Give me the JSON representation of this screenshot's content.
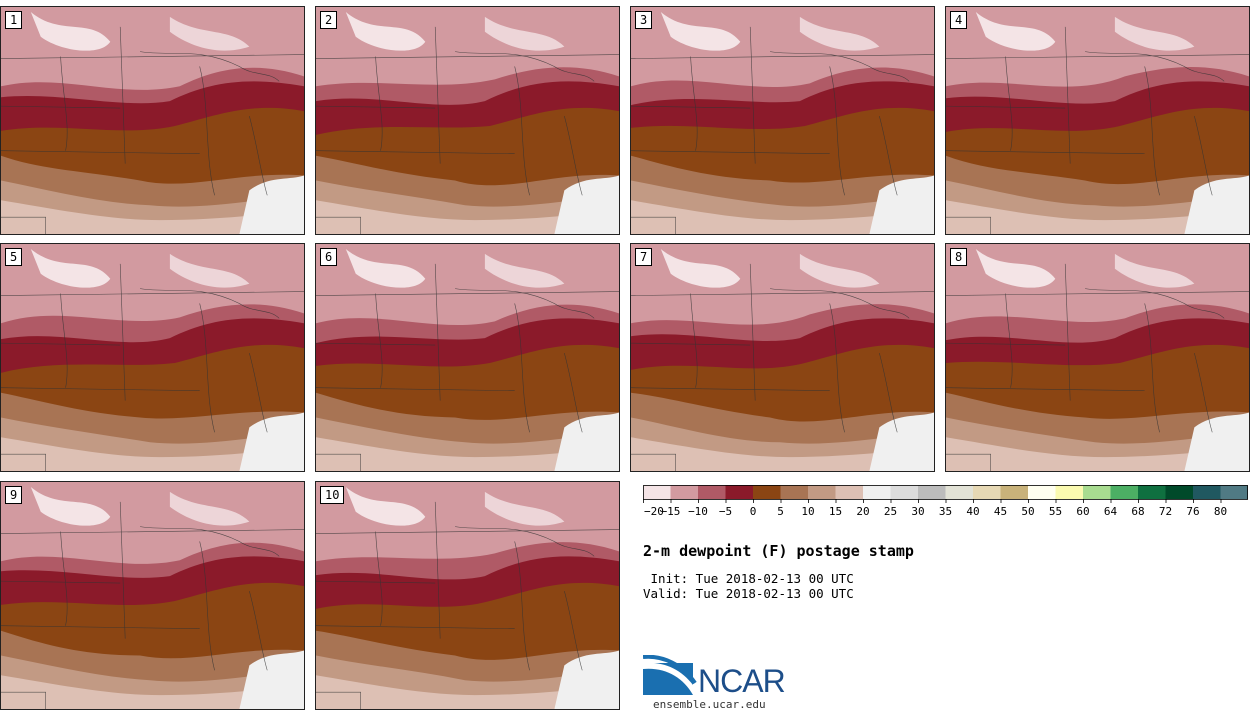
{
  "title": "2-m dewpoint (F) postage stamp",
  "init_label": " Init: Tue 2018-02-13 00 UTC",
  "valid_label": "Valid: Tue 2018-02-13 00 UTC",
  "logo_text": "NCAR",
  "url": "ensemble.ucar.edu",
  "members": [
    "1",
    "2",
    "3",
    "4",
    "5",
    "6",
    "7",
    "8",
    "9",
    "10"
  ],
  "colorbar": {
    "ticks": [
      "−20",
      "−15",
      "−10",
      "−5",
      "0",
      "5",
      "10",
      "15",
      "20",
      "25",
      "30",
      "35",
      "40",
      "45",
      "50",
      "55",
      "60",
      "64",
      "68",
      "72",
      "76",
      "80"
    ],
    "colors": [
      "#f4e4e6",
      "#d29aa0",
      "#b05a66",
      "#8b1a2a",
      "#8b4513",
      "#a87454",
      "#c29a84",
      "#ddc0b4",
      "#f0f0f0",
      "#dcdcdc",
      "#bcbcbc",
      "#e2e2d6",
      "#e6d8b4",
      "#c8b27a",
      "#fffff0",
      "#fafab0",
      "#a8dc90",
      "#4caf64",
      "#0f7040",
      "#004a2a",
      "#205860",
      "#507a84"
    ]
  },
  "colors": {
    "very_light_pink": "#f4e4e6",
    "pink": "#d29aa0",
    "dark_pink": "#b05a66",
    "dark_red": "#8b1a2a",
    "brown": "#8b4513",
    "tan": "#a87454",
    "light_tan": "#c29a84",
    "pale": "#ddc0b4",
    "white": "#f0f0f0"
  }
}
